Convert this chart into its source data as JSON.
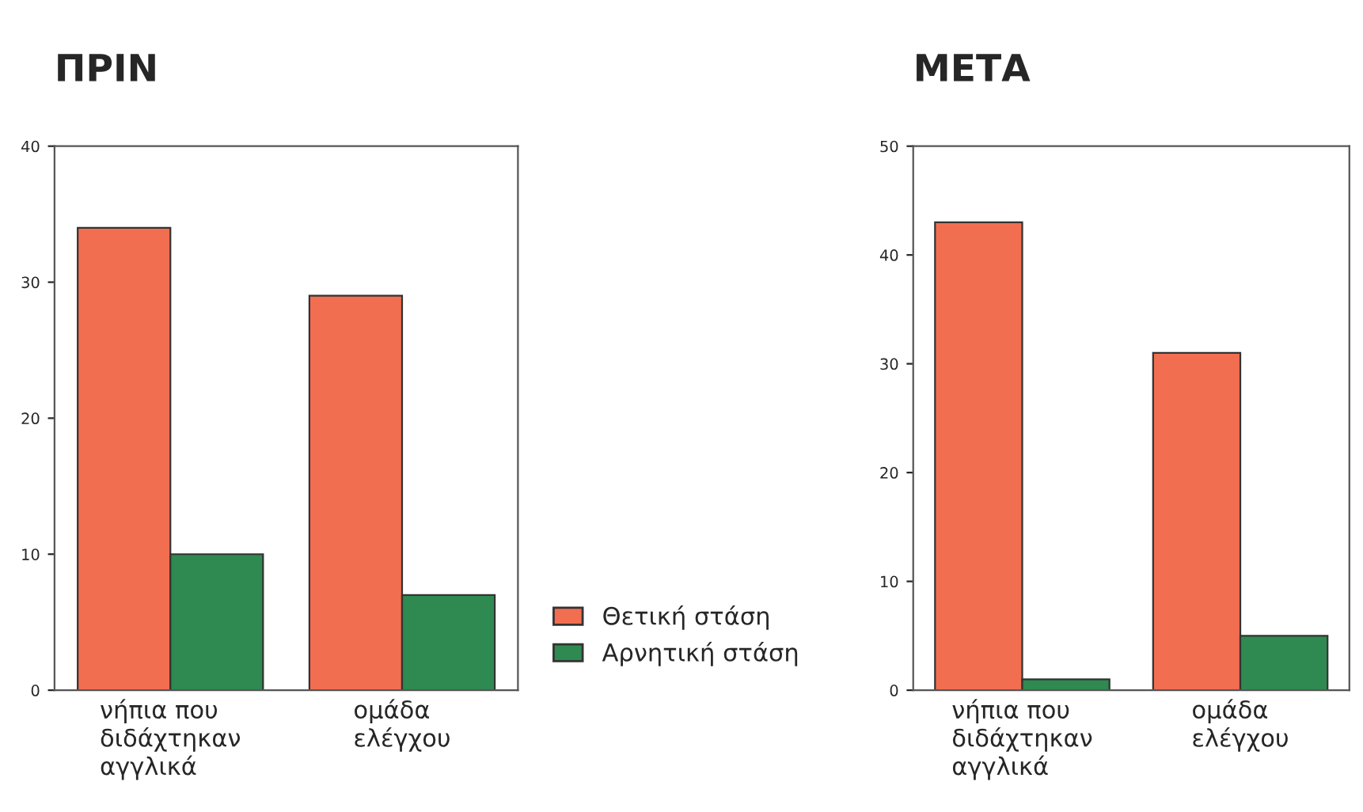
{
  "chart_data": [
    {
      "type": "bar",
      "title": "ΠΡΙΝ",
      "categories": [
        "νήπια που\nδιδάχτηκαν\nαγγλικά",
        "ομάδα\nελέγχου"
      ],
      "series": [
        {
          "name": "Θετική στάση",
          "color": "#f26e50",
          "values": [
            34,
            29
          ]
        },
        {
          "name": "Αρνητική στάση",
          "color": "#2e8a50",
          "values": [
            10,
            7
          ]
        }
      ],
      "ylim": [
        0,
        40
      ],
      "yticks": [
        0,
        10,
        20,
        30,
        40
      ],
      "grid": false,
      "legend": "right"
    },
    {
      "type": "bar",
      "title": "ΜΕΤΑ",
      "categories": [
        "νήπια που\nδιδάχτηκαν\nαγγλικά",
        "ομάδα\nελέγχου"
      ],
      "series": [
        {
          "color": "#f26e50",
          "values": [
            43,
            31
          ]
        },
        {
          "color": "#2e8a50",
          "values": [
            1,
            5
          ]
        }
      ],
      "ylim": [
        0,
        50
      ],
      "yticks": [
        0,
        10,
        20,
        30,
        40,
        50
      ],
      "grid": false,
      "legend": false
    }
  ]
}
